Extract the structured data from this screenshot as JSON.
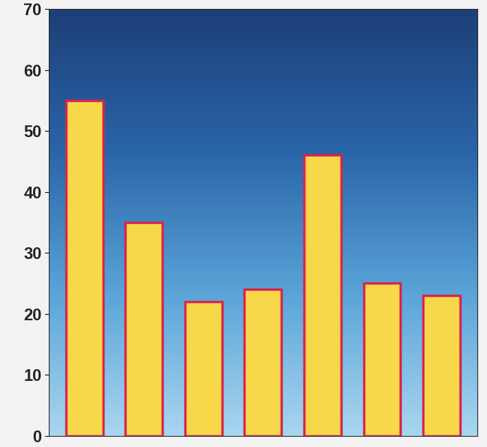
{
  "chart_data": {
    "type": "bar",
    "categories": [
      null,
      null,
      null,
      null,
      null,
      null,
      null
    ],
    "values": [
      55,
      35,
      22,
      24,
      46,
      25,
      23
    ],
    "color": "#f7d84a",
    "ylim": [
      0,
      70
    ],
    "yticks": [
      0,
      10,
      20,
      30,
      40,
      50,
      60,
      70
    ],
    "tick_labels": "y"
  }
}
